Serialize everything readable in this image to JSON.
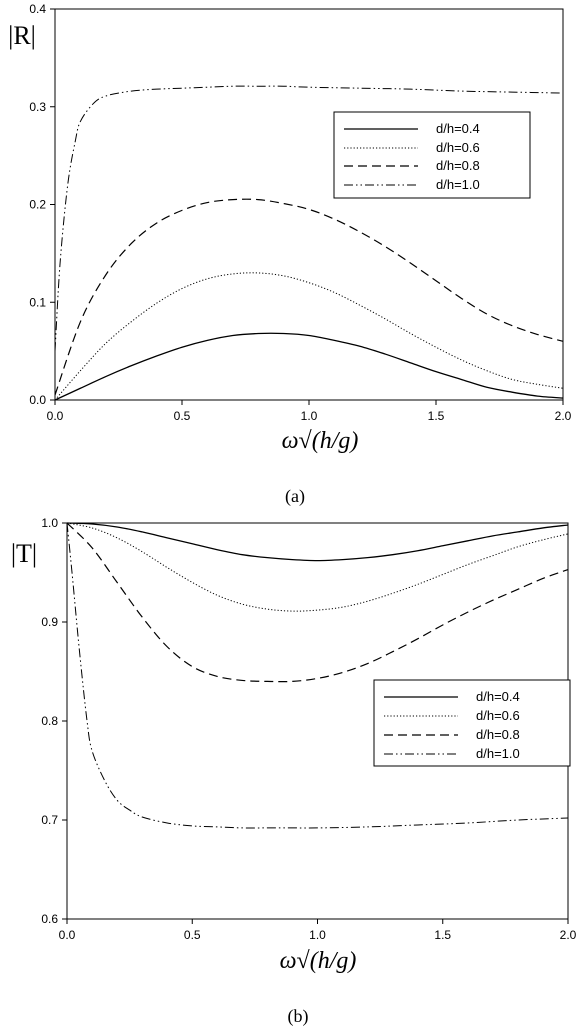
{
  "chart_data": [
    {
      "type": "line",
      "panel_label": "(a)",
      "ylabel": "|R|",
      "xlabel": "ω√(h/g)",
      "xlim": [
        0,
        2
      ],
      "ylim": [
        0,
        0.4
      ],
      "xticks": [
        0,
        0.5,
        1,
        1.5,
        2
      ],
      "yticks": [
        0,
        0.1,
        0.2,
        0.3,
        0.4
      ],
      "xtick_labels": [
        "0.0",
        "0.5",
        "1.0",
        "1.5",
        "2.0"
      ],
      "ytick_labels": [
        "0.0",
        "0.1",
        "0.2",
        "0.3",
        "0.4"
      ],
      "grid": false,
      "legend_position": "upper-right",
      "series": [
        {
          "name": "d/h=0.4",
          "style": "solid",
          "x": [
            0,
            0.1,
            0.2,
            0.3,
            0.4,
            0.5,
            0.6,
            0.7,
            0.8,
            0.9,
            1.0,
            1.1,
            1.2,
            1.3,
            1.4,
            1.5,
            1.6,
            1.7,
            1.8,
            1.9,
            2.0
          ],
          "y": [
            0,
            0.012,
            0.024,
            0.035,
            0.045,
            0.054,
            0.061,
            0.066,
            0.068,
            0.068,
            0.066,
            0.061,
            0.055,
            0.047,
            0.038,
            0.029,
            0.021,
            0.013,
            0.008,
            0.004,
            0.002
          ]
        },
        {
          "name": "d/h=0.6",
          "style": "dotted",
          "x": [
            0,
            0.1,
            0.2,
            0.3,
            0.4,
            0.5,
            0.6,
            0.7,
            0.8,
            0.9,
            1.0,
            1.1,
            1.2,
            1.3,
            1.4,
            1.5,
            1.6,
            1.7,
            1.8,
            1.9,
            2.0
          ],
          "y": [
            0,
            0.03,
            0.058,
            0.08,
            0.099,
            0.114,
            0.124,
            0.129,
            0.13,
            0.127,
            0.12,
            0.11,
            0.097,
            0.083,
            0.068,
            0.054,
            0.041,
            0.03,
            0.021,
            0.016,
            0.012
          ]
        },
        {
          "name": "d/h=0.8",
          "style": "dashed",
          "x": [
            0,
            0.1,
            0.2,
            0.3,
            0.4,
            0.5,
            0.6,
            0.7,
            0.8,
            0.9,
            1.0,
            1.1,
            1.2,
            1.3,
            1.4,
            1.5,
            1.6,
            1.7,
            1.8,
            1.9,
            2.0
          ],
          "y": [
            0.005,
            0.08,
            0.128,
            0.16,
            0.181,
            0.194,
            0.202,
            0.205,
            0.205,
            0.201,
            0.195,
            0.185,
            0.172,
            0.157,
            0.14,
            0.122,
            0.104,
            0.088,
            0.076,
            0.067,
            0.06
          ]
        },
        {
          "name": "d/h=1.0",
          "style": "dashdotdot",
          "x": [
            0,
            0.02,
            0.05,
            0.08,
            0.1,
            0.15,
            0.2,
            0.3,
            0.4,
            0.5,
            0.6,
            0.7,
            0.8,
            0.9,
            1.0,
            1.2,
            1.4,
            1.6,
            1.8,
            2.0
          ],
          "y": [
            0.05,
            0.14,
            0.22,
            0.265,
            0.285,
            0.303,
            0.311,
            0.316,
            0.318,
            0.319,
            0.32,
            0.321,
            0.321,
            0.321,
            0.32,
            0.319,
            0.318,
            0.316,
            0.315,
            0.314
          ]
        }
      ]
    },
    {
      "type": "line",
      "panel_label": "(b)",
      "ylabel": "|T|",
      "xlabel": "ω√(h/g)",
      "xlim": [
        0,
        2
      ],
      "ylim": [
        0.6,
        1.0
      ],
      "xticks": [
        0,
        0.5,
        1,
        1.5,
        2
      ],
      "yticks": [
        0.6,
        0.7,
        0.8,
        0.9,
        1.0
      ],
      "xtick_labels": [
        "0.0",
        "0.5",
        "1.0",
        "1.5",
        "2.0"
      ],
      "ytick_labels": [
        "0.6",
        "0.7",
        "0.8",
        "0.9",
        "1.0"
      ],
      "grid": false,
      "legend_position": "center-right",
      "series": [
        {
          "name": "d/h=0.4",
          "style": "solid",
          "x": [
            0,
            0.1,
            0.2,
            0.3,
            0.4,
            0.5,
            0.6,
            0.7,
            0.8,
            0.9,
            1.0,
            1.1,
            1.2,
            1.3,
            1.4,
            1.5,
            1.6,
            1.7,
            1.8,
            1.9,
            2.0
          ],
          "y": [
            1.0,
            0.999,
            0.996,
            0.991,
            0.985,
            0.979,
            0.973,
            0.968,
            0.965,
            0.963,
            0.962,
            0.963,
            0.965,
            0.968,
            0.972,
            0.977,
            0.982,
            0.987,
            0.991,
            0.995,
            0.998
          ]
        },
        {
          "name": "d/h=0.6",
          "style": "dotted",
          "x": [
            0,
            0.1,
            0.2,
            0.3,
            0.4,
            0.5,
            0.6,
            0.7,
            0.8,
            0.9,
            1.0,
            1.1,
            1.2,
            1.3,
            1.4,
            1.5,
            1.6,
            1.7,
            1.8,
            1.9,
            2.0
          ],
          "y": [
            1.0,
            0.995,
            0.985,
            0.971,
            0.955,
            0.94,
            0.927,
            0.918,
            0.913,
            0.911,
            0.912,
            0.915,
            0.921,
            0.929,
            0.938,
            0.948,
            0.958,
            0.967,
            0.976,
            0.983,
            0.989
          ]
        },
        {
          "name": "d/h=0.8",
          "style": "dashed",
          "x": [
            0,
            0.1,
            0.2,
            0.3,
            0.4,
            0.5,
            0.6,
            0.7,
            0.8,
            0.9,
            1.0,
            1.1,
            1.2,
            1.3,
            1.4,
            1.5,
            1.6,
            1.7,
            1.8,
            1.9,
            2.0
          ],
          "y": [
            1.0,
            0.975,
            0.94,
            0.905,
            0.875,
            0.855,
            0.845,
            0.841,
            0.84,
            0.84,
            0.843,
            0.849,
            0.858,
            0.87,
            0.883,
            0.897,
            0.91,
            0.922,
            0.933,
            0.944,
            0.953
          ]
        },
        {
          "name": "d/h=1.0",
          "style": "dashdotdot",
          "x": [
            0,
            0.02,
            0.05,
            0.08,
            0.1,
            0.15,
            0.2,
            0.25,
            0.3,
            0.4,
            0.5,
            0.6,
            0.7,
            0.8,
            0.9,
            1.0,
            1.2,
            1.4,
            1.6,
            1.8,
            2.0
          ],
          "y": [
            1.0,
            0.95,
            0.87,
            0.8,
            0.77,
            0.74,
            0.72,
            0.71,
            0.703,
            0.697,
            0.694,
            0.693,
            0.692,
            0.692,
            0.692,
            0.692,
            0.693,
            0.695,
            0.697,
            0.7,
            0.702
          ]
        }
      ]
    }
  ]
}
